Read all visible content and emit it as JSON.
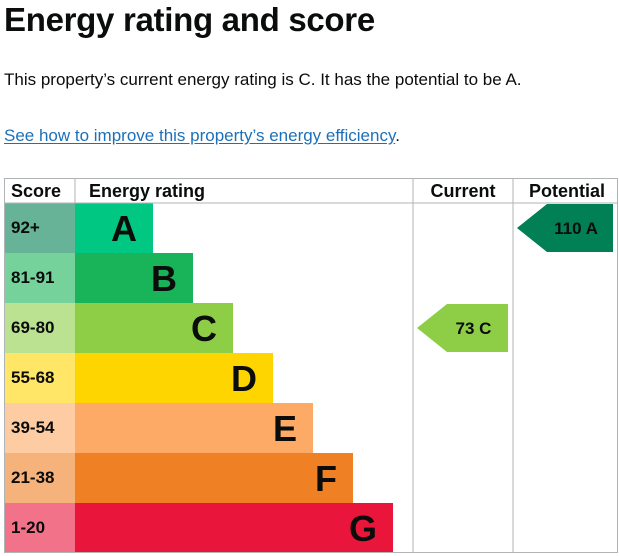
{
  "page": {
    "title": "Energy rating and score",
    "summary": "This property’s current energy rating is C. It has the potential to be A.",
    "link_text": "See how to improve this property’s energy efficiency",
    "link_suffix": "."
  },
  "chart": {
    "headers": {
      "score": "Score",
      "rating": "Energy rating",
      "current": "Current",
      "potential": "Potential"
    },
    "bands": [
      {
        "score": "92+",
        "letter": "A",
        "color": "#008054",
        "score_bg": "#66b398"
      },
      {
        "score": "81-91",
        "letter": "B",
        "color": "#19b459",
        "score_bg": "#75d29b"
      },
      {
        "score": "69-80",
        "letter": "C",
        "color": "#8dce46",
        "score_bg": "#bbe290"
      },
      {
        "score": "55-68",
        "letter": "D",
        "color": "#ffd500",
        "score_bg": "#ffe666"
      },
      {
        "score": "39-54",
        "letter": "E",
        "color": "#fcaa65",
        "score_bg": "#fdcca3"
      },
      {
        "score": "21-38",
        "letter": "F",
        "color": "#ef8023",
        "score_bg": "#f5b37b"
      },
      {
        "score": "1-20",
        "letter": "G",
        "color": "#e9153b",
        "score_bg": "#f27389"
      }
    ],
    "current": {
      "value": "73",
      "letter": "C",
      "band_index": 2,
      "color": "#8dce46"
    },
    "potential": {
      "value": "110",
      "letter": "A",
      "band_index": 0,
      "color": "#008054"
    },
    "band_colors_note_letter_A_fill": "#00c781",
    "band_colors_note_letter_A_fill_is_visual": true
  }
}
